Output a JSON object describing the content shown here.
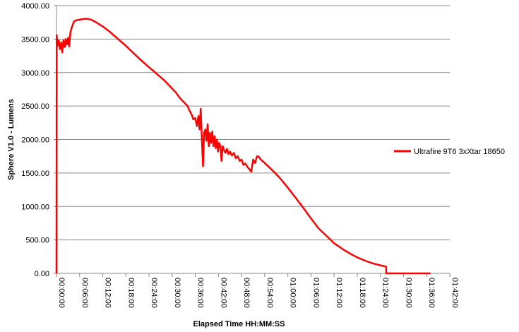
{
  "chart_data": {
    "type": "line",
    "xlabel": "Elapsed Time HH:MM:SS",
    "ylabel": "Sphere V1.0 - Lumens",
    "ylim": [
      0,
      4000
    ],
    "xlim_minutes": [
      0,
      102
    ],
    "grid": "horizontal",
    "legend_position": "right",
    "y_ticks": [
      "0.00",
      "500.00",
      "1000.00",
      "1500.00",
      "2000.00",
      "2500.00",
      "3000.00",
      "3500.00",
      "4000.00"
    ],
    "x_ticks": [
      "00:00:00",
      "00:06:00",
      "00:12:00",
      "00:18:00",
      "00:24:00",
      "00:30:00",
      "00:36:00",
      "00:42:00",
      "00:48:00",
      "00:54:00",
      "01:00:00",
      "01:06:00",
      "01:12:00",
      "01:18:00",
      "01:24:00",
      "01:30:00",
      "01:36:00",
      "01:42:00"
    ],
    "series": [
      {
        "name": "Ultrafire 9T6 3xXtar 18650",
        "color": "#ff0000",
        "points": [
          [
            0,
            0
          ],
          [
            0.05,
            3560
          ],
          [
            0.3,
            3400
          ],
          [
            0.6,
            3480
          ],
          [
            0.9,
            3350
          ],
          [
            1.2,
            3450
          ],
          [
            1.5,
            3300
          ],
          [
            1.8,
            3480
          ],
          [
            2.1,
            3380
          ],
          [
            2.4,
            3500
          ],
          [
            2.7,
            3420
          ],
          [
            3.0,
            3520
          ],
          [
            3.3,
            3390
          ],
          [
            3.6,
            3600
          ],
          [
            4.0,
            3680
          ],
          [
            4.5,
            3760
          ],
          [
            5.0,
            3780
          ],
          [
            6.0,
            3790
          ],
          [
            7.0,
            3800
          ],
          [
            8.0,
            3805
          ],
          [
            9.0,
            3790
          ],
          [
            10.0,
            3760
          ],
          [
            12.0,
            3690
          ],
          [
            14.0,
            3600
          ],
          [
            16.0,
            3500
          ],
          [
            18.0,
            3400
          ],
          [
            20.0,
            3290
          ],
          [
            22.0,
            3180
          ],
          [
            24.0,
            3080
          ],
          [
            26.0,
            2980
          ],
          [
            28.0,
            2880
          ],
          [
            29.0,
            2820
          ],
          [
            30.0,
            2760
          ],
          [
            31.0,
            2700
          ],
          [
            32.0,
            2620
          ],
          [
            33.0,
            2560
          ],
          [
            34.0,
            2500
          ],
          [
            34.5,
            2430
          ],
          [
            35.0,
            2380
          ],
          [
            35.5,
            2300
          ],
          [
            36.0,
            2320
          ],
          [
            36.4,
            2200
          ],
          [
            36.8,
            2350
          ],
          [
            37.1,
            2150
          ],
          [
            37.4,
            2460
          ],
          [
            37.7,
            2000
          ],
          [
            38.0,
            1600
          ],
          [
            38.3,
            2100
          ],
          [
            38.6,
            2150
          ],
          [
            38.9,
            1980
          ],
          [
            39.2,
            2230
          ],
          [
            39.5,
            1900
          ],
          [
            39.8,
            2100
          ],
          [
            40.1,
            1950
          ],
          [
            40.4,
            2120
          ],
          [
            40.7,
            1900
          ],
          [
            41.0,
            2050
          ],
          [
            41.3,
            1870
          ],
          [
            41.6,
            2000
          ],
          [
            41.9,
            1820
          ],
          [
            42.2,
            1950
          ],
          [
            42.5,
            1900
          ],
          [
            42.8,
            1680
          ],
          [
            43.1,
            1900
          ],
          [
            43.4,
            1850
          ],
          [
            43.8,
            1800
          ],
          [
            44.2,
            1860
          ],
          [
            44.6,
            1780
          ],
          [
            45.0,
            1820
          ],
          [
            45.5,
            1760
          ],
          [
            46.0,
            1800
          ],
          [
            46.5,
            1720
          ],
          [
            47.0,
            1750
          ],
          [
            47.5,
            1680
          ],
          [
            48.0,
            1700
          ],
          [
            48.5,
            1620
          ],
          [
            49.0,
            1640
          ],
          [
            49.5,
            1590
          ],
          [
            50.0,
            1560
          ],
          [
            50.5,
            1520
          ],
          [
            51.0,
            1700
          ],
          [
            51.5,
            1650
          ],
          [
            52.0,
            1750
          ],
          [
            52.5,
            1740
          ],
          [
            53.0,
            1700
          ],
          [
            54.0,
            1650
          ],
          [
            56.0,
            1540
          ],
          [
            58.0,
            1420
          ],
          [
            60.0,
            1280
          ],
          [
            62.0,
            1130
          ],
          [
            64.0,
            980
          ],
          [
            66.0,
            820
          ],
          [
            68.0,
            670
          ],
          [
            70.0,
            560
          ],
          [
            72.0,
            450
          ],
          [
            74.0,
            370
          ],
          [
            76.0,
            300
          ],
          [
            78.0,
            240
          ],
          [
            80.0,
            190
          ],
          [
            82.0,
            150
          ],
          [
            84.0,
            120
          ],
          [
            85.5,
            100
          ],
          [
            85.5,
            0
          ],
          [
            97.0,
            0
          ]
        ]
      }
    ]
  }
}
